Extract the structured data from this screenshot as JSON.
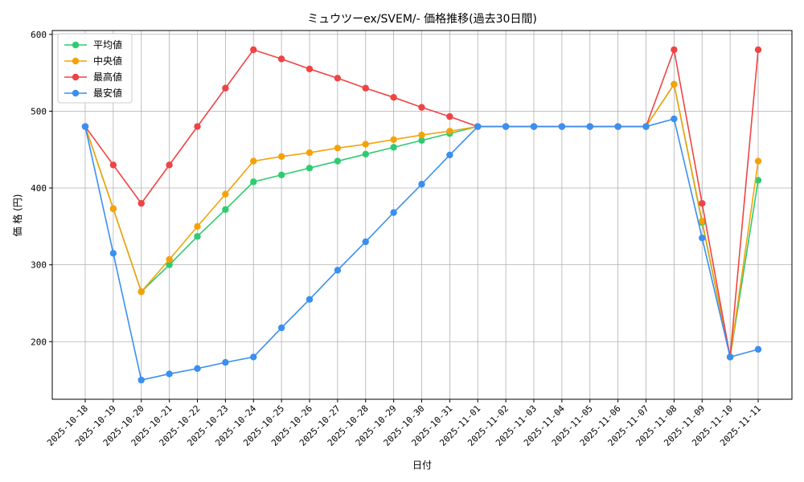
{
  "chart_data": {
    "type": "line",
    "title": "ミュウツーex/SVEM/- 価格推移(過去30日間)",
    "xlabel": "日付",
    "ylabel": "価 格 (円)",
    "ylim": [
      125,
      605
    ],
    "yticks": [
      200,
      300,
      400,
      500,
      600
    ],
    "grid": true,
    "legend_position": "top-left",
    "categories": [
      "2025-10-18",
      "2025-10-19",
      "2025-10-20",
      "2025-10-21",
      "2025-10-22",
      "2025-10-23",
      "2025-10-24",
      "2025-10-25",
      "2025-10-26",
      "2025-10-27",
      "2025-10-28",
      "2025-10-29",
      "2025-10-30",
      "2025-10-31",
      "2025-11-01",
      "2025-11-02",
      "2025-11-03",
      "2025-11-04",
      "2025-11-05",
      "2025-11-06",
      "2025-11-07",
      "2025-11-08",
      "2025-11-09",
      "2025-11-10",
      "2025-11-11"
    ],
    "series": [
      {
        "name": "平均値",
        "color": "#2ecc71",
        "values": [
          480,
          373,
          265,
          300,
          337,
          372,
          408,
          417,
          426,
          435,
          444,
          453,
          462,
          471,
          480,
          480,
          480,
          480,
          480,
          480,
          480,
          535,
          355,
          180,
          410
        ]
      },
      {
        "name": "中央値",
        "color": "#f5a20a",
        "values": [
          480,
          373,
          265,
          307,
          350,
          392,
          435,
          441,
          446,
          452,
          457,
          463,
          469,
          474,
          480,
          480,
          480,
          480,
          480,
          480,
          480,
          535,
          357,
          180,
          435
        ]
      },
      {
        "name": "最高値",
        "color": "#ef4444",
        "values": [
          480,
          430,
          380,
          430,
          480,
          530,
          580,
          568,
          555,
          543,
          530,
          518,
          505,
          493,
          480,
          480,
          480,
          480,
          480,
          480,
          480,
          580,
          380,
          180,
          580
        ]
      },
      {
        "name": "最安値",
        "color": "#3b8ff0",
        "values": [
          480,
          315,
          150,
          158,
          165,
          173,
          180,
          218,
          255,
          293,
          330,
          368,
          405,
          443,
          480,
          480,
          480,
          480,
          480,
          480,
          480,
          490,
          335,
          180,
          190
        ]
      }
    ]
  }
}
